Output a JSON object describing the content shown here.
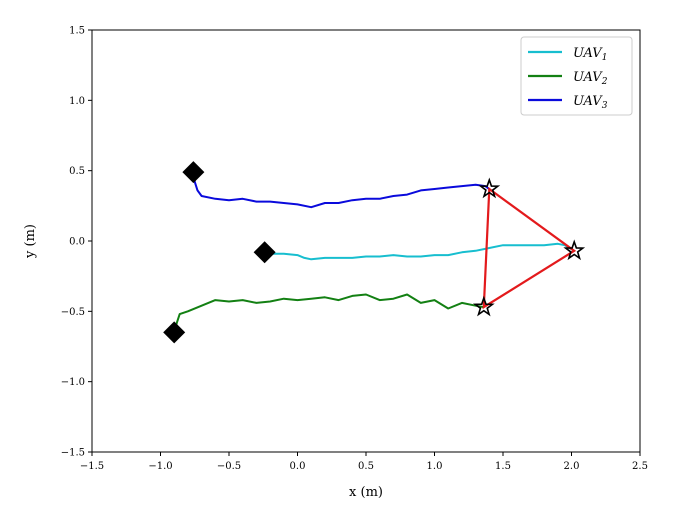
{
  "chart_data": {
    "type": "line",
    "xlabel": "x (m)",
    "ylabel": "y (m)",
    "xlim": [
      -1.5,
      2.5
    ],
    "ylim": [
      -1.5,
      1.5
    ],
    "xticks": [
      "−1.5",
      "−1.0",
      "−0.5",
      "0.0",
      "0.5",
      "1.0",
      "1.5",
      "2.0",
      "2.5"
    ],
    "yticks": [
      "−1.5",
      "−1.0",
      "−0.5",
      "0.0",
      "0.5",
      "1.0",
      "1.5"
    ],
    "legend_position": "top-right",
    "series": [
      {
        "name": "UAV",
        "subscript": "1",
        "color": "#17becf",
        "x": [
          -0.24,
          -0.2,
          -0.1,
          0.0,
          0.05,
          0.1,
          0.2,
          0.3,
          0.4,
          0.5,
          0.6,
          0.7,
          0.8,
          0.9,
          1.0,
          1.1,
          1.2,
          1.3,
          1.4,
          1.5,
          1.6,
          1.7,
          1.8,
          1.9,
          1.95,
          2.02
        ],
        "y": [
          -0.08,
          -0.09,
          -0.09,
          -0.1,
          -0.12,
          -0.13,
          -0.12,
          -0.12,
          -0.12,
          -0.11,
          -0.11,
          -0.1,
          -0.11,
          -0.11,
          -0.1,
          -0.1,
          -0.08,
          -0.07,
          -0.05,
          -0.03,
          -0.03,
          -0.03,
          -0.03,
          -0.02,
          -0.03,
          -0.07
        ]
      },
      {
        "name": "UAV",
        "subscript": "2",
        "color": "#138013",
        "x": [
          -0.9,
          -0.88,
          -0.86,
          -0.8,
          -0.7,
          -0.6,
          -0.5,
          -0.4,
          -0.3,
          -0.2,
          -0.1,
          0.0,
          0.1,
          0.2,
          0.3,
          0.4,
          0.5,
          0.6,
          0.7,
          0.8,
          0.9,
          1.0,
          1.1,
          1.2,
          1.3,
          1.36
        ],
        "y": [
          -0.65,
          -0.58,
          -0.52,
          -0.5,
          -0.46,
          -0.42,
          -0.43,
          -0.42,
          -0.44,
          -0.43,
          -0.41,
          -0.42,
          -0.41,
          -0.4,
          -0.42,
          -0.39,
          -0.38,
          -0.42,
          -0.41,
          -0.38,
          -0.44,
          -0.42,
          -0.48,
          -0.44,
          -0.46,
          -0.47
        ]
      },
      {
        "name": "UAV",
        "subscript": "3",
        "color": "#0a0adc",
        "x": [
          -0.76,
          -0.75,
          -0.73,
          -0.7,
          -0.6,
          -0.5,
          -0.4,
          -0.3,
          -0.2,
          -0.1,
          0.0,
          0.1,
          0.2,
          0.3,
          0.4,
          0.5,
          0.6,
          0.7,
          0.8,
          0.9,
          1.0,
          1.1,
          1.2,
          1.3,
          1.37,
          1.4
        ],
        "y": [
          0.49,
          0.42,
          0.36,
          0.32,
          0.3,
          0.29,
          0.3,
          0.28,
          0.28,
          0.27,
          0.26,
          0.24,
          0.27,
          0.27,
          0.29,
          0.3,
          0.3,
          0.32,
          0.33,
          0.36,
          0.37,
          0.38,
          0.39,
          0.4,
          0.39,
          0.37
        ]
      }
    ],
    "start_markers": {
      "shape": "diamond",
      "color": "#000000",
      "points": [
        {
          "x": -0.24,
          "y": -0.08
        },
        {
          "x": -0.9,
          "y": -0.65
        },
        {
          "x": -0.76,
          "y": 0.49
        }
      ]
    },
    "end_markers": {
      "shape": "star",
      "color": "#000000",
      "points": [
        {
          "x": 2.02,
          "y": -0.07
        },
        {
          "x": 1.36,
          "y": -0.47
        },
        {
          "x": 1.4,
          "y": 0.37
        }
      ]
    },
    "formation": {
      "color": "#e31a1c",
      "vertices": [
        {
          "x": 1.4,
          "y": 0.37
        },
        {
          "x": 2.02,
          "y": -0.07
        },
        {
          "x": 1.36,
          "y": -0.47
        }
      ]
    }
  }
}
